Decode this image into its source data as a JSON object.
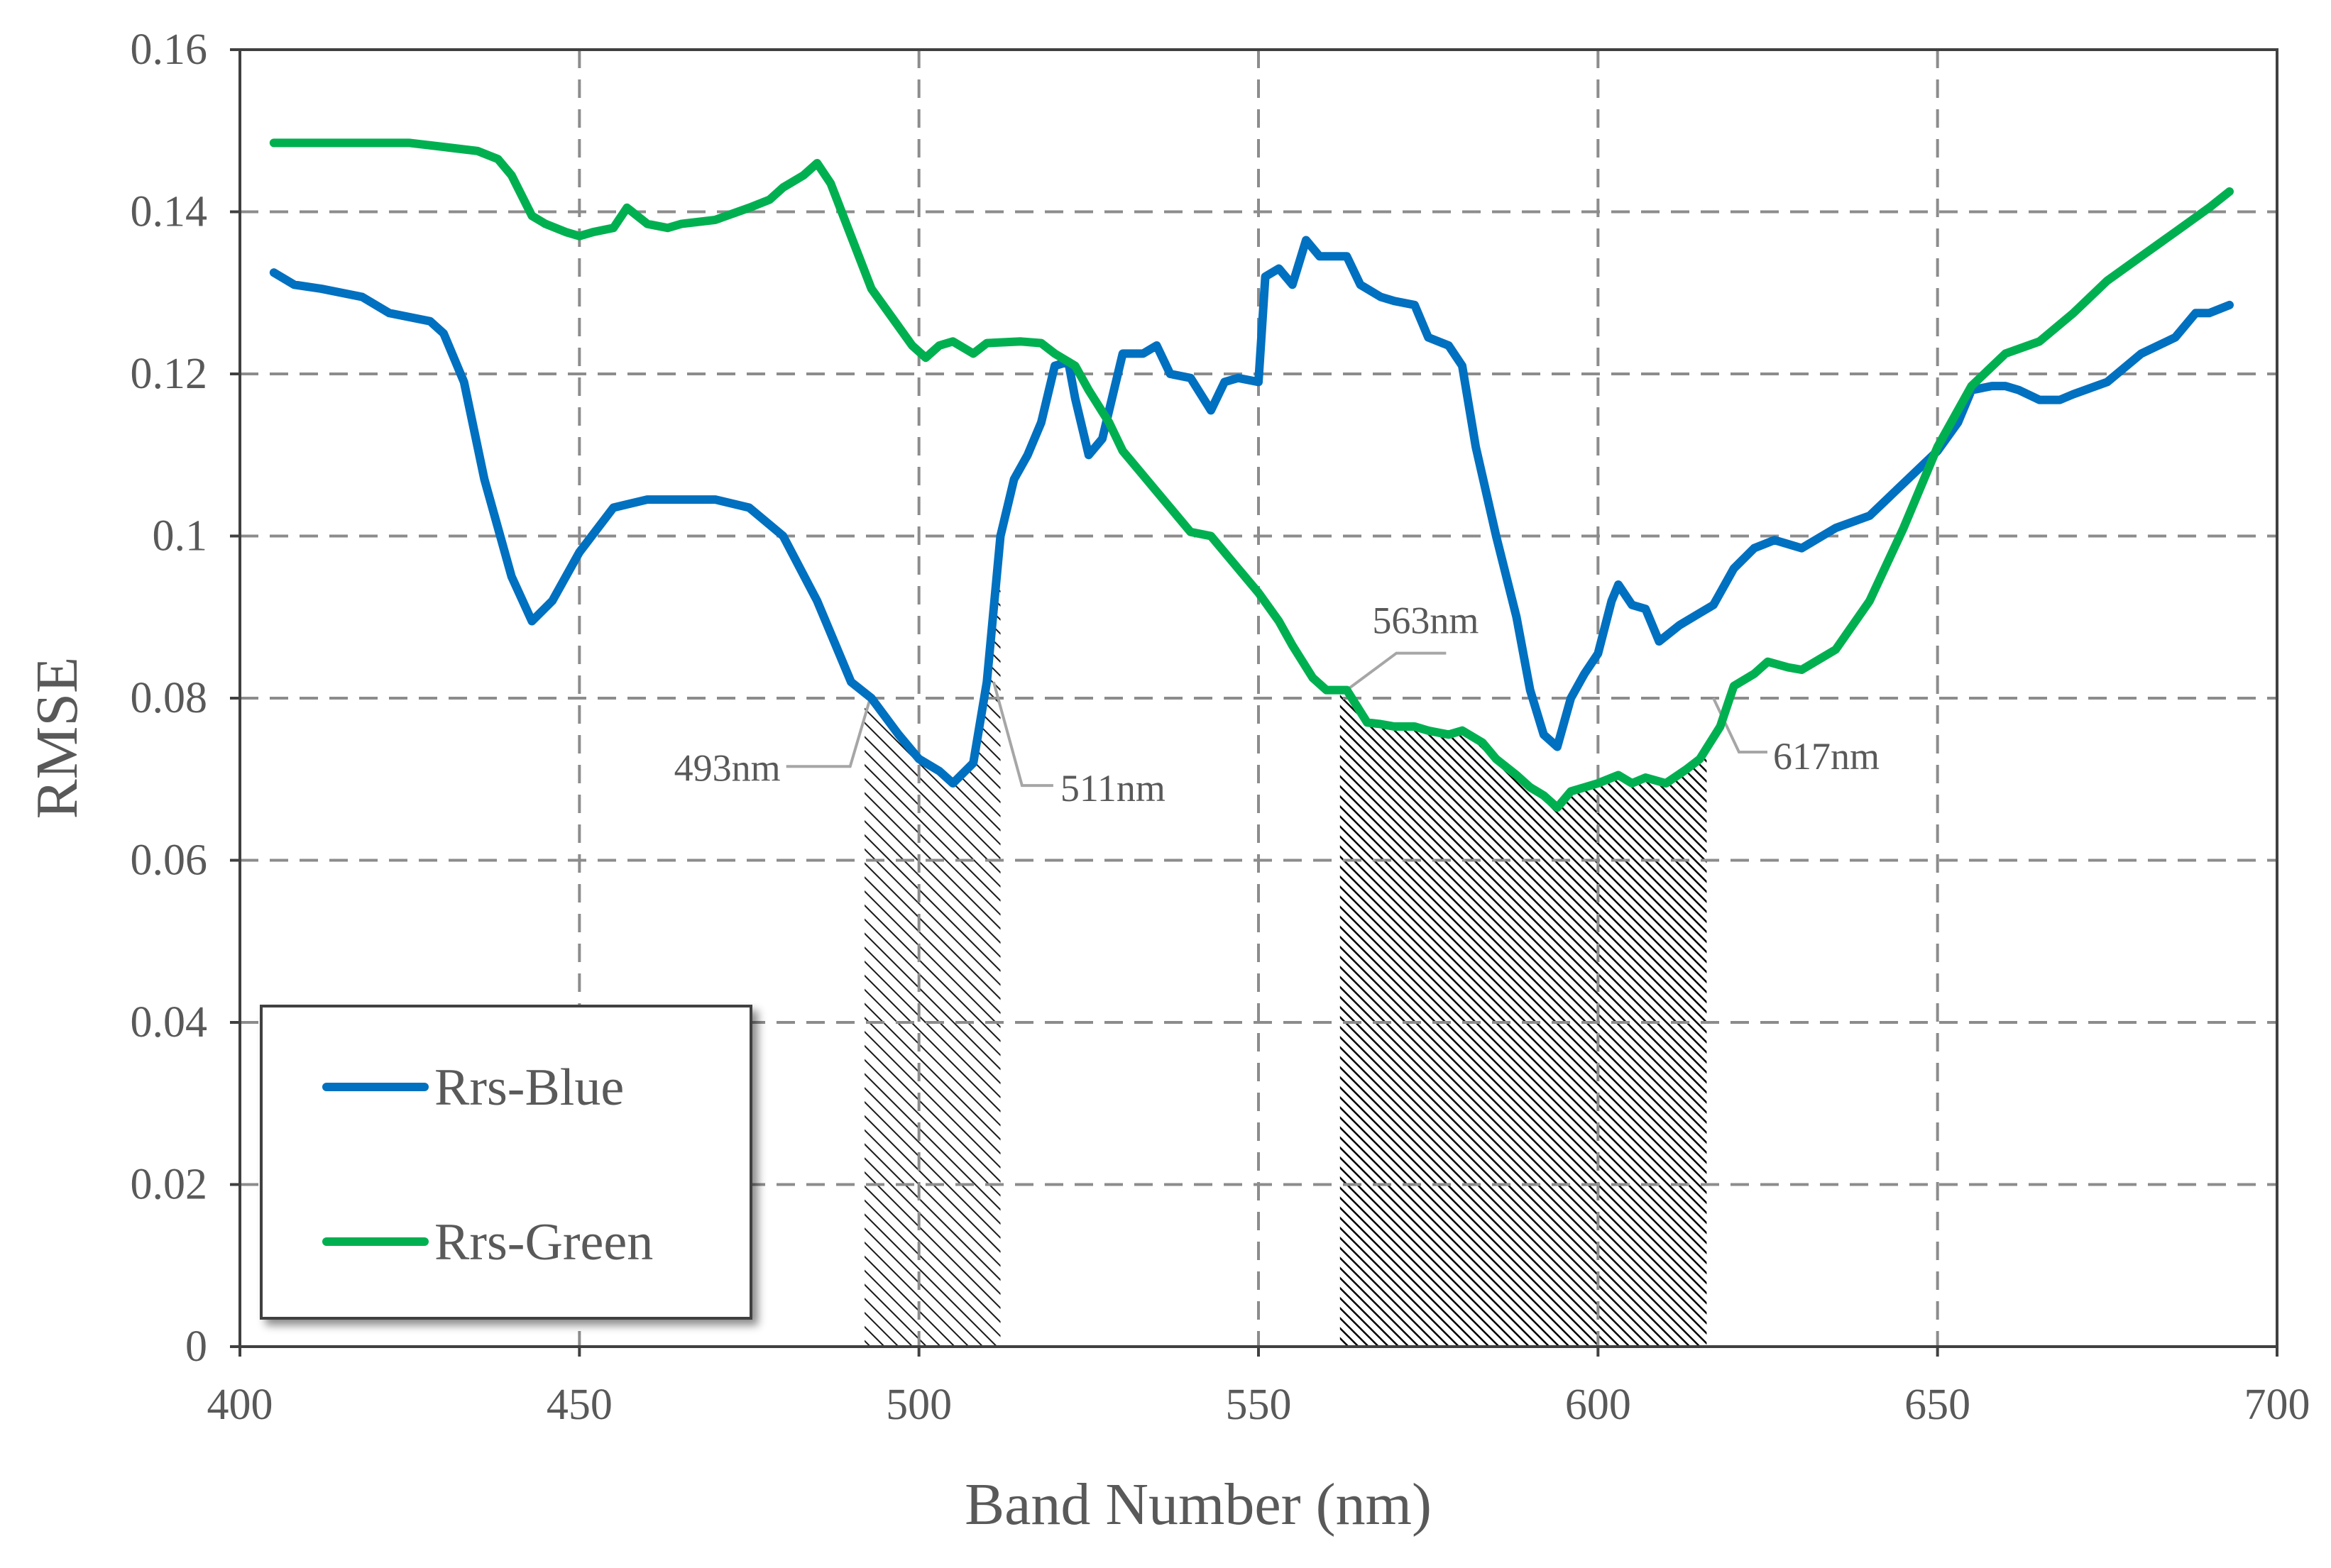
{
  "chart_data": {
    "type": "line",
    "title": "",
    "xlabel": "Band Number (nm)",
    "ylabel": "RMSE",
    "xlim": [
      400,
      700
    ],
    "ylim": [
      0,
      0.16
    ],
    "x_ticks": [
      400,
      450,
      500,
      550,
      600,
      650,
      700
    ],
    "x_tick_labels": [
      "400",
      "450",
      "500",
      "550",
      "600",
      "650",
      "700"
    ],
    "y_ticks": [
      0,
      0.02,
      0.04,
      0.06,
      0.08,
      0.1,
      0.12,
      0.14,
      0.16
    ],
    "y_tick_labels": [
      "0",
      "0.02",
      "0.04",
      "0.06",
      "0.08",
      "0.1",
      "0.12",
      "0.14",
      "0.16"
    ],
    "grid": true,
    "legend_position": "bottom-left",
    "series": [
      {
        "name": "Rrs-Blue",
        "color": "#0070c0",
        "x": [
          405,
          408,
          412,
          418,
          422,
          428,
          430,
          433,
          436,
          440,
          443,
          446,
          450,
          455,
          460,
          465,
          470,
          475,
          480,
          485,
          488,
          490,
          493,
          497,
          500,
          503,
          505,
          508,
          510,
          512,
          514,
          516,
          518,
          520,
          522,
          523,
          525,
          527,
          530,
          533,
          535,
          537,
          540,
          543,
          545,
          547,
          550,
          551,
          553,
          555,
          557,
          559,
          561,
          563,
          565,
          568,
          570,
          573,
          575,
          578,
          580,
          582,
          585,
          588,
          590,
          592,
          594,
          596,
          598,
          600,
          602,
          603,
          605,
          607,
          609,
          612,
          615,
          617,
          620,
          623,
          626,
          630,
          635,
          640,
          645,
          650,
          653,
          655,
          658,
          660,
          662,
          665,
          668,
          670,
          675,
          680,
          685,
          688,
          690,
          693
        ],
        "values": [
          0.1325,
          0.131,
          0.1305,
          0.1295,
          0.1275,
          0.1265,
          0.125,
          0.119,
          0.107,
          0.095,
          0.0895,
          0.092,
          0.098,
          0.1035,
          0.1045,
          0.1045,
          0.1045,
          0.1035,
          0.1,
          0.092,
          0.086,
          0.082,
          0.08,
          0.0755,
          0.0725,
          0.071,
          0.0695,
          0.072,
          0.082,
          0.1,
          0.107,
          0.11,
          0.114,
          0.121,
          0.1215,
          0.117,
          0.11,
          0.112,
          0.1225,
          0.1225,
          0.1235,
          0.12,
          0.1195,
          0.1155,
          0.119,
          0.1195,
          0.119,
          0.132,
          0.133,
          0.131,
          0.1365,
          0.1345,
          0.1345,
          0.1345,
          0.131,
          0.1295,
          0.129,
          0.1285,
          0.1245,
          0.1235,
          0.121,
          0.111,
          0.1,
          0.09,
          0.081,
          0.0755,
          0.074,
          0.08,
          0.083,
          0.0855,
          0.092,
          0.094,
          0.0915,
          0.091,
          0.087,
          0.089,
          0.0905,
          0.0915,
          0.096,
          0.0985,
          0.0995,
          0.0985,
          0.101,
          0.1025,
          0.1065,
          0.1105,
          0.114,
          0.118,
          0.1185,
          0.1185,
          0.118,
          0.1168,
          0.1168,
          0.1175,
          0.119,
          0.1225,
          0.1245,
          0.1275,
          0.1275,
          0.1285
        ]
      },
      {
        "name": "Rrs-Green",
        "color": "#00b050",
        "x": [
          405,
          410,
          415,
          420,
          425,
          430,
          435,
          438,
          440,
          443,
          445,
          448,
          450,
          452,
          455,
          457,
          460,
          463,
          465,
          470,
          475,
          478,
          480,
          483,
          485,
          487,
          490,
          493,
          496,
          499,
          501,
          503,
          505,
          508,
          510,
          515,
          518,
          520,
          523,
          525,
          528,
          530,
          533,
          535,
          540,
          543,
          546,
          550,
          553,
          555,
          558,
          560,
          563,
          566,
          568,
          570,
          573,
          575,
          578,
          580,
          583,
          585,
          588,
          590,
          592,
          594,
          596,
          598,
          600,
          603,
          605,
          607,
          610,
          613,
          615,
          618,
          620,
          623,
          625,
          628,
          630,
          635,
          640,
          645,
          650,
          655,
          660,
          665,
          670,
          675,
          680,
          685,
          690,
          693
        ],
        "values": [
          0.1485,
          0.1485,
          0.1485,
          0.1485,
          0.1485,
          0.148,
          0.1475,
          0.1465,
          0.1445,
          0.1395,
          0.1385,
          0.1375,
          0.137,
          0.1375,
          0.138,
          0.1405,
          0.1385,
          0.138,
          0.1385,
          0.139,
          0.1405,
          0.1415,
          0.143,
          0.1445,
          0.146,
          0.1435,
          0.137,
          0.1305,
          0.127,
          0.1235,
          0.122,
          0.1235,
          0.124,
          0.1225,
          0.1238,
          0.124,
          0.1238,
          0.1225,
          0.121,
          0.118,
          0.114,
          0.1105,
          0.1075,
          0.1055,
          0.1005,
          0.1,
          0.097,
          0.093,
          0.0895,
          0.0865,
          0.0825,
          0.081,
          0.081,
          0.077,
          0.0768,
          0.0765,
          0.0765,
          0.076,
          0.0755,
          0.076,
          0.0745,
          0.0725,
          0.0705,
          0.069,
          0.068,
          0.0665,
          0.0685,
          0.069,
          0.0695,
          0.0705,
          0.0695,
          0.0702,
          0.0695,
          0.0712,
          0.0725,
          0.0765,
          0.0815,
          0.083,
          0.0845,
          0.0838,
          0.0835,
          0.086,
          0.092,
          0.101,
          0.111,
          0.1185,
          0.1225,
          0.124,
          0.1275,
          0.1315,
          0.1345,
          0.1375,
          0.1405,
          0.1425
        ]
      }
    ],
    "shaded_regions": [
      {
        "x_start": 492,
        "x_end": 512
      },
      {
        "x_start": 562,
        "x_end": 616
      }
    ],
    "annotations": [
      {
        "text": "493nm",
        "x": 493,
        "y": 0.0805
      },
      {
        "text": "511nm",
        "x": 511,
        "y": 0.082
      },
      {
        "text": "563nm",
        "x": 563,
        "y": 0.081
      },
      {
        "text": "617nm",
        "x": 617,
        "y": 0.08
      }
    ]
  }
}
